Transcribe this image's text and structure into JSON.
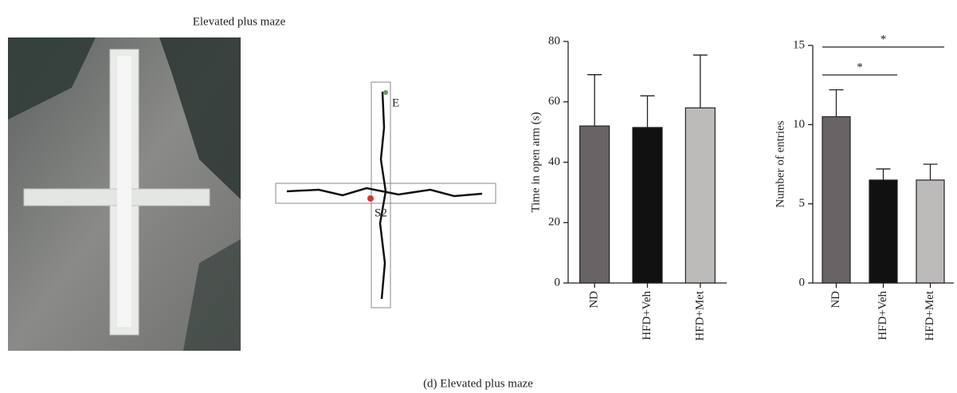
{
  "title": "Elevated plus maze",
  "caption": "(d) Elevated plus maze",
  "track_labels": [
    "E",
    "S2"
  ],
  "chart_data": [
    {
      "type": "bar",
      "ylabel": "Time in open arm (s)",
      "categories": [
        "ND",
        "HFD+Veh",
        "HFD+Met"
      ],
      "values": [
        52,
        51.5,
        58
      ],
      "errors": [
        17,
        10.5,
        17.5
      ],
      "colors": [
        "#686465",
        "#111111",
        "#bdbaba"
      ],
      "ylim": [
        0,
        80
      ],
      "yticks": [
        0,
        20,
        40,
        60,
        80
      ]
    },
    {
      "type": "bar",
      "ylabel": "Number of entries",
      "categories": [
        "ND",
        "HFD+Veh",
        "HFD+Met"
      ],
      "values": [
        10.5,
        6.5,
        6.5
      ],
      "errors": [
        1.7,
        0.7,
        1.0
      ],
      "colors": [
        "#686465",
        "#111111",
        "#bdbaba"
      ],
      "ylim": [
        0,
        15
      ],
      "yticks": [
        0,
        5,
        10,
        15
      ],
      "significance": [
        {
          "label": "*",
          "pairs": [
            0,
            2
          ]
        },
        {
          "label": "*",
          "pairs": [
            0,
            1
          ]
        }
      ]
    }
  ]
}
